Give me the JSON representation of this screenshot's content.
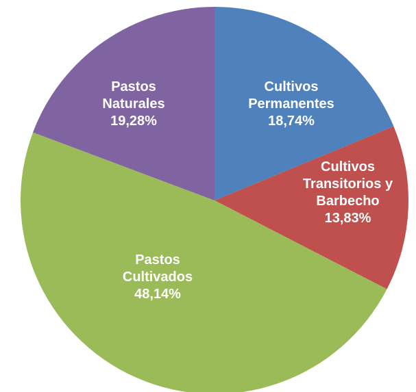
{
  "chart_data": {
    "type": "pie",
    "categories": [
      "Cultivos Permanentes",
      "Cultivos Transitorios y Barbecho",
      "Pastos Cultivados",
      "Pastos Naturales"
    ],
    "values": [
      18.74,
      13.83,
      48.14,
      19.28
    ],
    "value_labels": [
      "18,74%",
      "13,83%",
      "48,14%",
      "19,28%"
    ],
    "colors": [
      "#4f81bd",
      "#c0504d",
      "#9bbb59",
      "#8064a2"
    ]
  }
}
